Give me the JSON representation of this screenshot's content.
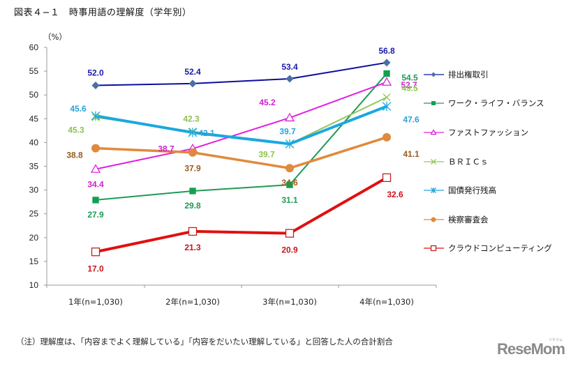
{
  "page": {
    "title": "図表４−１　時事用語の理解度（学年別）",
    "note": "（注）理解度は、「内容までよく理解している」「内容をだいたい理解している」と回答した人の合計割合",
    "watermark": "ReseMom",
    "watermark_sub": "リセマム"
  },
  "chart_data": {
    "type": "line",
    "title": "図表４−１　時事用語の理解度（学年別）",
    "xlabel": "",
    "ylabel": "（%）",
    "ylim": [
      10,
      60
    ],
    "yticks": [
      10,
      15,
      20,
      25,
      30,
      35,
      40,
      45,
      50,
      55,
      60
    ],
    "grid": false,
    "legend_position": "right",
    "categories": [
      "1年(n=1,030)",
      "2年(n=1,030)",
      "3年(n=1,030)",
      "4年(n=1,030)"
    ],
    "series": [
      {
        "name": "排出権取引",
        "values": [
          52.0,
          52.4,
          53.4,
          56.8
        ],
        "color": "#0d0d9e",
        "marker_color": "#4a6fa5",
        "marker": "diamond",
        "label_color": "#1a1aa6"
      },
      {
        "name": "ワーク・ライフ・バランス",
        "values": [
          27.9,
          29.8,
          31.1,
          54.5
        ],
        "color": "#1f9a55",
        "marker_color": "#12a050",
        "marker": "square-filled",
        "label_color": "#1f9a55"
      },
      {
        "name": "ファストファッション",
        "values": [
          34.4,
          38.7,
          45.2,
          52.7
        ],
        "color": "#e020e0",
        "marker_color": "#e020e0",
        "marker": "triangle-open",
        "label_color": "#d21fd2"
      },
      {
        "name": "ＢＲＩＣｓ",
        "values": [
          45.3,
          42.3,
          39.7,
          49.5
        ],
        "color": "#92c85a",
        "marker_color": "#92c85a",
        "marker": "x",
        "label_color": "#8cc24f"
      },
      {
        "name": "国債発行残高",
        "values": [
          45.6,
          42.1,
          39.7,
          47.6
        ],
        "color": "#1aa8e0",
        "marker_color": "#1aa8e0",
        "marker": "asterisk",
        "label_color": "#26a3d8"
      },
      {
        "name": "検察審査会",
        "values": [
          38.8,
          37.9,
          34.6,
          41.1
        ],
        "color": "#e08a3c",
        "marker_color": "#e08a3c",
        "marker": "circle",
        "label_color": "#9b5a1e"
      },
      {
        "name": "クラウドコンピューティング",
        "values": [
          17.0,
          21.3,
          20.9,
          32.6
        ],
        "color": "#e01010",
        "marker_color": "#c42020",
        "marker": "square-open",
        "label_color": "#c8141e"
      }
    ],
    "data_labels": [
      [
        "52.0",
        "52.4",
        "53.4",
        "56.8"
      ],
      [
        "27.9",
        "29.8",
        "31.1",
        "54.5"
      ],
      [
        "34.4",
        "38.7",
        "45.2",
        "52.7"
      ],
      [
        "45.3",
        "42.3",
        "39.7",
        "49.5"
      ],
      [
        "45.6",
        "42.1",
        "39.7",
        "47.6"
      ],
      [
        "38.8",
        "37.9",
        "34.6",
        "41.1"
      ],
      [
        "17.0",
        "21.3",
        "20.9",
        "32.6"
      ]
    ]
  }
}
